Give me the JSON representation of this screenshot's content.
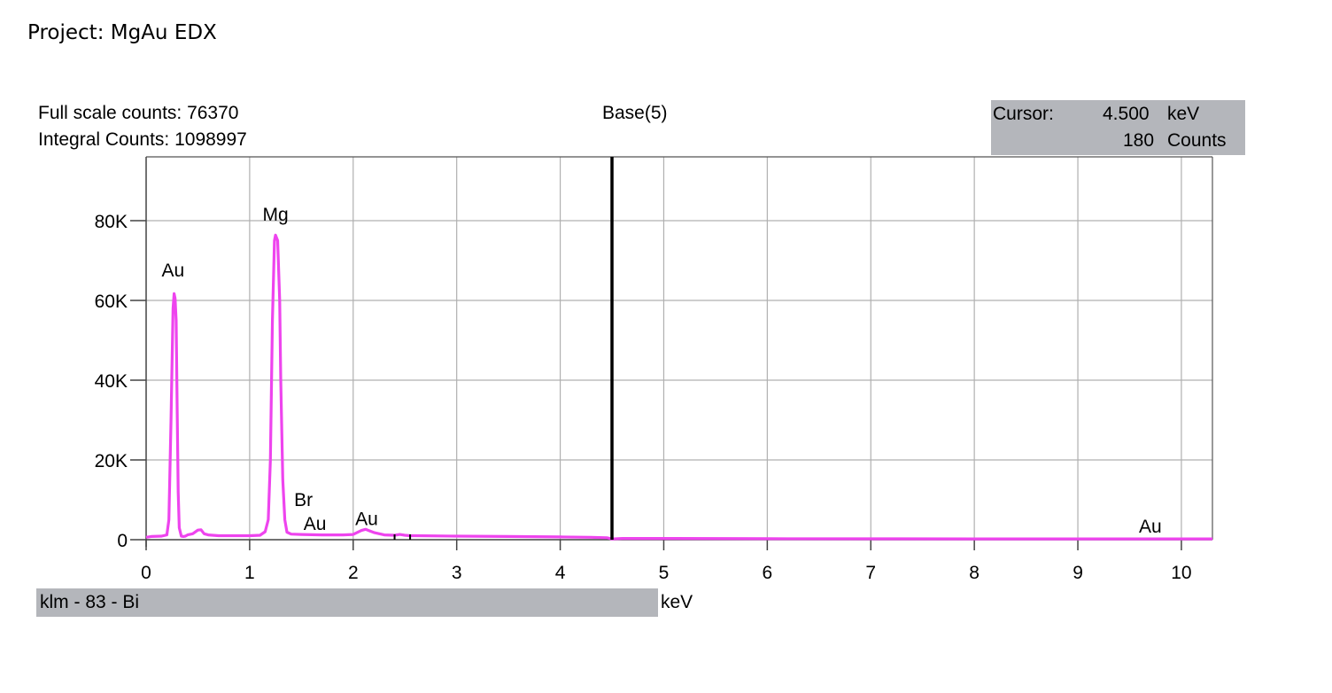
{
  "header": {
    "project": "Project: MgAu EDX",
    "full_scale": "Full scale counts: 76370",
    "integral": "Integral Counts: 1098997",
    "base": "Base(5)"
  },
  "cursor": {
    "label": "Cursor:",
    "kev_value": "4.500",
    "kev_unit": "keV",
    "counts_value": "180",
    "counts_unit": "Counts",
    "position_kev": 4.5
  },
  "footer": {
    "status": "klm - 83 - Bi",
    "unit": "keV"
  },
  "colors": {
    "spectrum": "#ee44ee",
    "grid": "#b0b0b0",
    "panel": "#b4b6bb",
    "cursor_line": "#000000"
  },
  "chart_data": {
    "type": "line",
    "xlim": [
      0,
      10.3
    ],
    "ylim": [
      0,
      96000
    ],
    "grid": true,
    "xticks": [
      0,
      1,
      2,
      3,
      4,
      5,
      6,
      7,
      8,
      9,
      10
    ],
    "xtick_labels": [
      "0",
      "1",
      "2",
      "3",
      "4",
      "5",
      "6",
      "7",
      "8",
      "9",
      "10"
    ],
    "yticks": [
      0,
      20000,
      40000,
      60000,
      80000
    ],
    "ytick_labels": [
      "0",
      "20K",
      "40K",
      "60K",
      "80K"
    ],
    "series": [
      {
        "x": [
          0.0,
          0.05,
          0.15,
          0.2,
          0.22,
          0.24,
          0.26,
          0.27,
          0.28,
          0.29,
          0.3,
          0.31,
          0.32,
          0.34,
          0.36,
          0.38,
          0.4,
          0.45,
          0.5,
          0.53,
          0.56,
          0.6,
          0.7,
          0.8,
          0.9,
          1.0,
          1.1,
          1.15,
          1.18,
          1.2,
          1.22,
          1.24,
          1.25,
          1.27,
          1.29,
          1.3,
          1.32,
          1.34,
          1.36,
          1.4,
          1.5,
          1.7,
          1.9,
          2.0,
          2.08,
          2.12,
          2.16,
          2.2,
          2.3,
          2.4,
          2.45,
          2.5,
          2.55,
          2.6,
          3.0,
          3.5,
          4.0,
          4.3,
          4.45,
          4.5,
          4.6,
          4.8,
          5.0,
          6.0,
          7.0,
          8.0,
          9.0,
          9.7,
          10.0,
          10.3
        ],
        "y": [
          600,
          800,
          900,
          1200,
          5000,
          30000,
          58000,
          61700,
          60500,
          55000,
          32000,
          12000,
          3000,
          900,
          800,
          900,
          1200,
          1500,
          2400,
          2500,
          1500,
          1200,
          1000,
          1000,
          1000,
          1000,
          1100,
          2000,
          5000,
          20000,
          55000,
          75000,
          76370,
          75000,
          60000,
          40000,
          15000,
          5000,
          1900,
          1400,
          1300,
          1200,
          1200,
          1300,
          2300,
          2600,
          2200,
          1800,
          1200,
          1100,
          1300,
          1100,
          1000,
          1000,
          900,
          800,
          700,
          600,
          500,
          180,
          300,
          300,
          300,
          250,
          220,
          200,
          200,
          200,
          200,
          200
        ]
      }
    ],
    "annotations": [
      {
        "text": "Au",
        "x": 0.26,
        "y": 66000
      },
      {
        "text": "Mg",
        "x": 1.25,
        "y": 80000
      },
      {
        "text": "Br",
        "x": 1.52,
        "y": 8500
      },
      {
        "text": "Au",
        "x": 1.63,
        "y": 2500
      },
      {
        "text": "Au",
        "x": 2.13,
        "y": 3700
      },
      {
        "text": "Au",
        "x": 9.7,
        "y": 1800
      }
    ]
  }
}
